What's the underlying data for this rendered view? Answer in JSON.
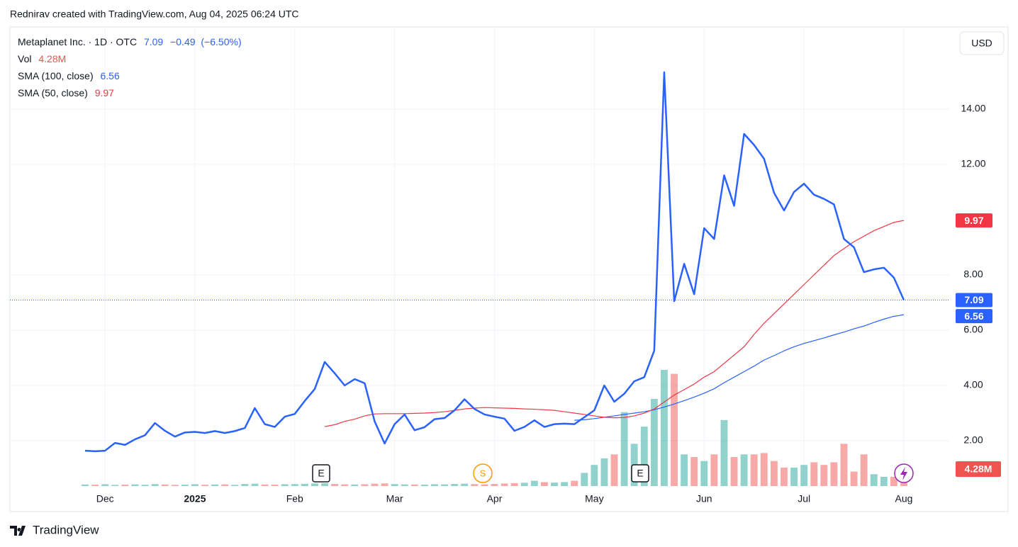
{
  "attribution": "Rednirav created with TradingView.com, Aug 04, 2025 06:24 UTC",
  "brand": "TradingView",
  "currency": "USD",
  "chart_data": {
    "type": "line",
    "categories": [
      null,
      null,
      "Dec",
      null,
      null,
      null,
      null,
      null,
      null,
      null,
      null,
      "2025",
      null,
      null,
      null,
      null,
      null,
      null,
      null,
      null,
      null,
      "Feb",
      null,
      null,
      null,
      null,
      null,
      null,
      null,
      null,
      null,
      "Mar",
      null,
      null,
      null,
      null,
      null,
      null,
      null,
      null,
      null,
      "Apr",
      null,
      null,
      null,
      null,
      null,
      null,
      null,
      null,
      null,
      "May",
      null,
      null,
      null,
      null,
      null,
      null,
      null,
      null,
      null,
      null,
      "Jun",
      null,
      null,
      null,
      null,
      null,
      null,
      null,
      null,
      null,
      "Jul",
      null,
      null,
      null,
      null,
      null,
      null,
      null,
      null,
      null,
      "Aug"
    ],
    "series": [
      {
        "name": "Metaplanet Inc. · 1D · OTC",
        "color": "#2962ff",
        "values": [
          1.64,
          1.62,
          1.64,
          1.92,
          1.85,
          2.05,
          2.2,
          2.64,
          2.36,
          2.15,
          2.3,
          2.32,
          2.28,
          2.35,
          2.28,
          2.35,
          2.46,
          3.18,
          2.6,
          2.5,
          2.87,
          2.97,
          3.44,
          3.87,
          4.85,
          4.44,
          4.0,
          4.23,
          4.08,
          2.7,
          1.9,
          2.6,
          2.95,
          2.38,
          2.49,
          2.78,
          2.82,
          3.1,
          3.5,
          3.15,
          2.95,
          2.87,
          2.8,
          2.36,
          2.5,
          2.74,
          2.5,
          2.6,
          2.62,
          2.6,
          2.85,
          3.1,
          4.0,
          3.41,
          3.7,
          4.15,
          4.3,
          5.26,
          15.33,
          7.05,
          8.4,
          7.3,
          9.69,
          9.3,
          11.6,
          10.5,
          13.1,
          12.7,
          12.2,
          10.97,
          10.33,
          11.0,
          11.3,
          10.9,
          10.75,
          10.55,
          9.3,
          9.0,
          8.1,
          8.2,
          8.26,
          7.9,
          7.09
        ]
      },
      {
        "name": "SMA (100, close)",
        "color": "#2962ff",
        "values": [
          null,
          null,
          null,
          null,
          null,
          null,
          null,
          null,
          null,
          null,
          null,
          null,
          null,
          null,
          null,
          null,
          null,
          null,
          null,
          null,
          null,
          null,
          null,
          null,
          null,
          null,
          null,
          null,
          null,
          null,
          null,
          null,
          null,
          null,
          null,
          null,
          null,
          null,
          null,
          null,
          null,
          null,
          null,
          null,
          null,
          null,
          null,
          null,
          null,
          2.74,
          2.76,
          2.8,
          2.85,
          2.9,
          2.95,
          3.0,
          3.05,
          3.12,
          3.22,
          3.33,
          3.45,
          3.58,
          3.72,
          3.88,
          4.1,
          4.3,
          4.5,
          4.7,
          4.92,
          5.08,
          5.25,
          5.4,
          5.52,
          5.62,
          5.72,
          5.83,
          5.93,
          6.05,
          6.15,
          6.28,
          6.4,
          6.5,
          6.56
        ]
      },
      {
        "name": "SMA (50, close)",
        "color": "#f23645",
        "values": [
          null,
          null,
          null,
          null,
          null,
          null,
          null,
          null,
          null,
          null,
          null,
          null,
          null,
          null,
          null,
          null,
          null,
          null,
          null,
          null,
          null,
          null,
          null,
          null,
          2.51,
          2.58,
          2.7,
          2.78,
          2.9,
          2.97,
          2.98,
          2.98,
          2.98,
          2.99,
          3.0,
          3.02,
          3.05,
          3.1,
          3.15,
          3.18,
          3.2,
          3.19,
          3.18,
          3.17,
          3.15,
          3.14,
          3.12,
          3.1,
          3.05,
          3.0,
          2.95,
          2.9,
          2.85,
          2.83,
          2.84,
          2.9,
          3.0,
          3.15,
          3.4,
          3.65,
          3.85,
          4.05,
          4.3,
          4.5,
          4.8,
          5.1,
          5.4,
          5.85,
          6.25,
          6.6,
          6.95,
          7.3,
          7.65,
          8.0,
          8.35,
          8.7,
          8.95,
          9.2,
          9.4,
          9.6,
          9.75,
          9.9,
          9.97
        ]
      }
    ],
    "change": {
      "value": -0.49,
      "label": "−0.49"
    },
    "change_pct": {
      "value": -6.5,
      "label": "(−6.50%)"
    },
    "volume": {
      "name": "Vol",
      "up_color": "#26a69a",
      "down_color": "#ef5350",
      "values": [
        1.2,
        1.0,
        1.4,
        0.9,
        1.1,
        1.3,
        1.0,
        1.5,
        1.2,
        0.9,
        1.1,
        1.4,
        1.0,
        1.2,
        1.3,
        0.9,
        1.6,
        1.8,
        1.2,
        1.1,
        1.4,
        1.5,
        1.7,
        2.0,
        2.2,
        1.6,
        1.3,
        1.2,
        1.4,
        1.8,
        2.0,
        1.5,
        1.3,
        1.2,
        1.1,
        1.4,
        1.3,
        1.6,
        1.8,
        1.5,
        1.3,
        1.6,
        1.9,
        2.2,
        2.5,
        4,
        3,
        2.6,
        3,
        4,
        10,
        16,
        21,
        24,
        56,
        32,
        45,
        66,
        88,
        85,
        24,
        22,
        19,
        24,
        50,
        22,
        24,
        24,
        25,
        19,
        14,
        14,
        16,
        18,
        16,
        18,
        32,
        11,
        24,
        9,
        7,
        7,
        4.28
      ],
      "value_labels": [
        null,
        null,
        null,
        null,
        null,
        null,
        null,
        null,
        null,
        null,
        null,
        null,
        null,
        null,
        null,
        null,
        null,
        null,
        null,
        null,
        null,
        null,
        null,
        null,
        null,
        null,
        null,
        null,
        null,
        null,
        null,
        null,
        null,
        null,
        null,
        null,
        null,
        null,
        null,
        null,
        null,
        null,
        null,
        null,
        null,
        null,
        null,
        null,
        null,
        null,
        null,
        null,
        null,
        null,
        null,
        null,
        null,
        null,
        null,
        null,
        null,
        null,
        null,
        null,
        null,
        null,
        null,
        null,
        null,
        null,
        null,
        null,
        null,
        null,
        null,
        null,
        null,
        null,
        null,
        null,
        null,
        null,
        "4.28M"
      ]
    },
    "events": [
      {
        "label": "E"
      },
      {
        "label": "S"
      },
      {
        "label": "E"
      }
    ],
    "ylim": [
      0.36,
      16.92
    ],
    "yticks": [
      {
        "value": 2,
        "label": "2.00"
      },
      {
        "value": 4,
        "label": "4.00"
      },
      {
        "value": 6,
        "label": "6.00"
      },
      {
        "value": 8,
        "label": "8.00"
      },
      {
        "value": 12,
        "label": "12.00"
      },
      {
        "value": 14,
        "label": "14.00"
      }
    ],
    "grid": true
  }
}
